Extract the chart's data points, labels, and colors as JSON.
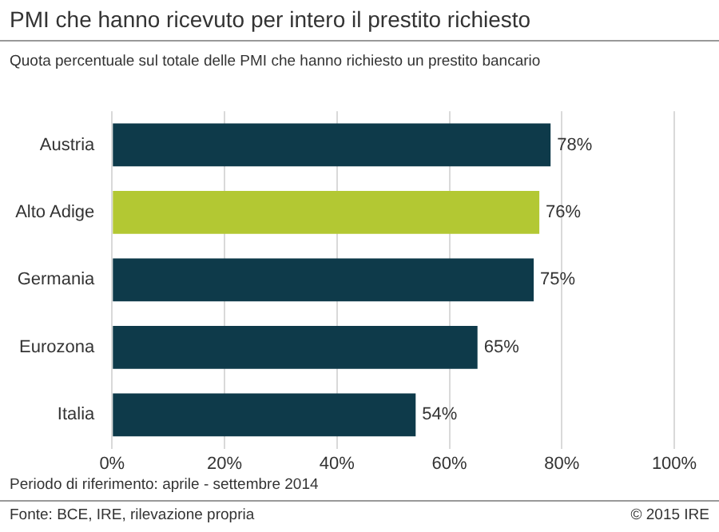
{
  "chart_data": {
    "type": "bar",
    "orientation": "horizontal",
    "title": "PMI che hanno ricevuto per intero il prestito richiesto",
    "subtitle": "Quota percentuale sul totale delle PMI che hanno richiesto un prestito bancario",
    "categories": [
      "Austria",
      "Alto Adige",
      "Germania",
      "Eurozona",
      "Italia"
    ],
    "values": [
      78,
      76,
      75,
      65,
      54
    ],
    "colors": [
      "#0e3a4a",
      "#b3c833",
      "#0e3a4a",
      "#0e3a4a",
      "#0e3a4a"
    ],
    "value_labels": [
      "78%",
      "76%",
      "75%",
      "65%",
      "54%"
    ],
    "xlim": [
      0,
      100
    ],
    "xticks": [
      {
        "value": 0,
        "label": "0%"
      },
      {
        "value": 20,
        "label": "20%"
      },
      {
        "value": 40,
        "label": "40%"
      },
      {
        "value": 60,
        "label": "60%"
      },
      {
        "value": 80,
        "label": "80%"
      },
      {
        "value": 100,
        "label": "100%"
      }
    ],
    "grid": "x",
    "legend": false,
    "annotations": [
      "Periodo di riferimento: aprile - settembre 2014",
      "Fonte: BCE, IRE, rilevazione propria",
      "© 2015 IRE"
    ]
  }
}
